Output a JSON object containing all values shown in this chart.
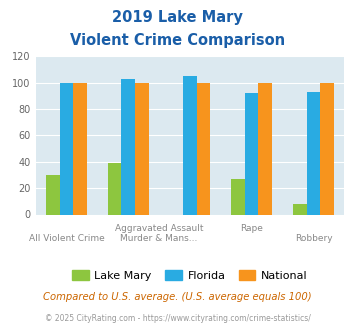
{
  "title_line1": "2019 Lake Mary",
  "title_line2": "Violent Crime Comparison",
  "lake_mary": [
    30,
    39,
    0,
    27,
    8
  ],
  "florida": [
    100,
    103,
    105,
    92,
    93
  ],
  "national": [
    100,
    100,
    100,
    100,
    100
  ],
  "ylim": [
    0,
    120
  ],
  "yticks": [
    0,
    20,
    40,
    60,
    80,
    100,
    120
  ],
  "color_lake_mary": "#8dc63f",
  "color_florida": "#29abe2",
  "color_national": "#f7941d",
  "bg_color": "#dce9f0",
  "title_color": "#1a5ea8",
  "xlabel_color": "#888888",
  "footer_text": "Compared to U.S. average. (U.S. average equals 100)",
  "copyright_text": "© 2025 CityRating.com - https://www.cityrating.com/crime-statistics/",
  "footer_color": "#cc6600",
  "copyright_color": "#999999",
  "legend_labels": [
    "Lake Mary",
    "Florida",
    "National"
  ],
  "bar_width": 0.22,
  "top_row_labels": [
    "",
    "Aggravated Assault",
    "",
    "Rape",
    ""
  ],
  "bottom_row_labels": [
    "All Violent Crime",
    "Murder & Mans...",
    "",
    "",
    "Robbery"
  ],
  "top_row_label_positions": [
    null,
    1.5,
    null,
    3,
    null
  ],
  "bottom_row_label_positions": [
    0,
    1.5,
    null,
    null,
    4
  ]
}
